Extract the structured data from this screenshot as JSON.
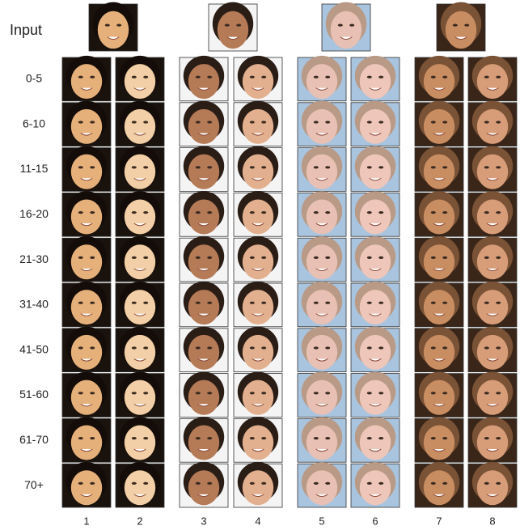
{
  "input_label": "Input",
  "age_groups": [
    "0-5",
    "6-10",
    "11-15",
    "16-20",
    "21-30",
    "31-40",
    "41-50",
    "51-60",
    "61-70",
    "70+"
  ],
  "columns": [
    "1",
    "2",
    "3",
    "4",
    "5",
    "6",
    "7",
    "8"
  ]
}
